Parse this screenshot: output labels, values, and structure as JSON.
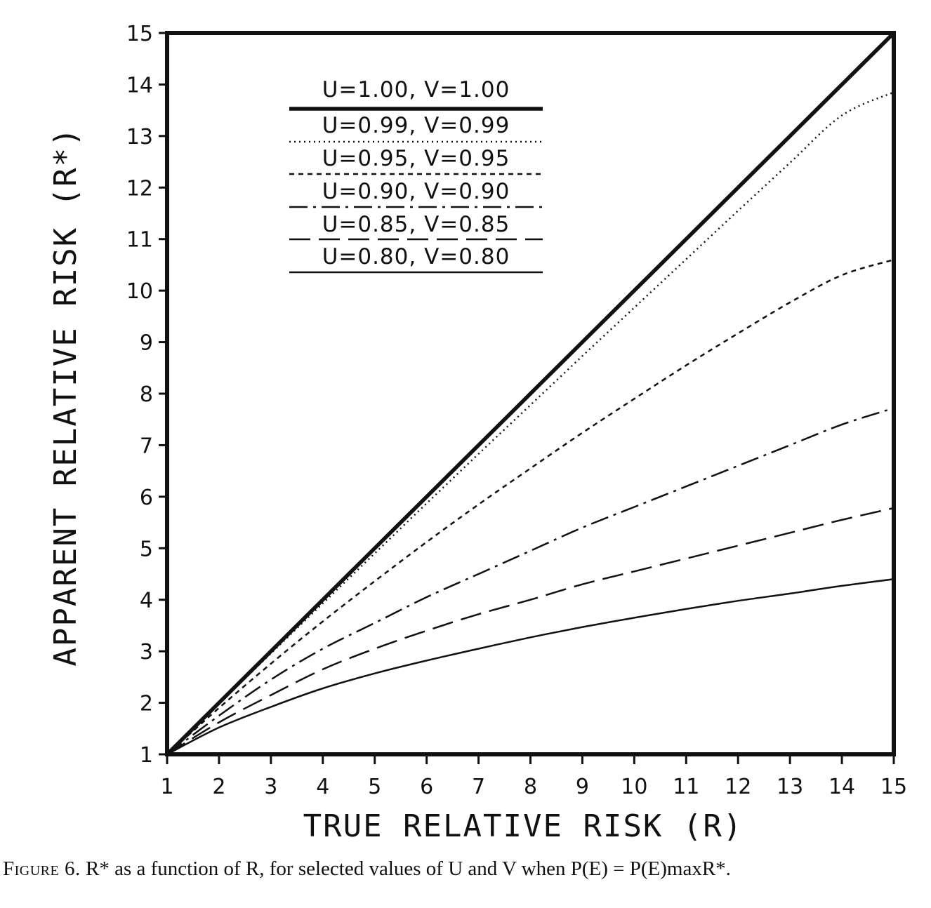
{
  "chart_data": {
    "type": "line",
    "xlabel": "TRUE RELATIVE RISK (R)",
    "ylabel": "APPARENT RELATIVE RISK (R*)",
    "xlim": [
      1,
      15
    ],
    "ylim": [
      1,
      15
    ],
    "xticks": [
      1,
      2,
      3,
      4,
      5,
      6,
      7,
      8,
      9,
      10,
      11,
      12,
      13,
      14,
      15
    ],
    "yticks": [
      1,
      2,
      3,
      4,
      5,
      6,
      7,
      8,
      9,
      10,
      11,
      12,
      13,
      14,
      15
    ],
    "legend_position": "top-left",
    "x": [
      1,
      2,
      3,
      4,
      5,
      6,
      7,
      8,
      9,
      10,
      11,
      12,
      13,
      14,
      15
    ],
    "series": [
      {
        "name": "U=1.00, V=1.00",
        "style": "solid-thick",
        "values": [
          1,
          2,
          3,
          4,
          5,
          6,
          7,
          8,
          9,
          10,
          11,
          12,
          13,
          14,
          15
        ]
      },
      {
        "name": "U=0.99, V=0.99",
        "style": "dotted",
        "values": [
          1,
          1.98,
          2.96,
          3.93,
          4.9,
          5.87,
          6.83,
          7.78,
          8.73,
          9.67,
          10.61,
          11.55,
          12.48,
          13.4,
          13.85
        ]
      },
      {
        "name": "U=0.95, V=0.95",
        "style": "short-dash",
        "values": [
          1,
          1.9,
          2.76,
          3.58,
          4.36,
          5.12,
          5.85,
          6.55,
          7.24,
          7.9,
          8.55,
          9.17,
          9.77,
          10.3,
          10.6
        ]
      },
      {
        "name": "U=0.90, V=0.90",
        "style": "dash-dot",
        "values": [
          1,
          1.75,
          2.45,
          3.05,
          3.55,
          4.05,
          4.5,
          4.95,
          5.4,
          5.8,
          6.2,
          6.6,
          7.0,
          7.4,
          7.72
        ]
      },
      {
        "name": "U=0.85, V=0.85",
        "style": "long-dash",
        "values": [
          1,
          1.62,
          2.15,
          2.65,
          3.05,
          3.4,
          3.72,
          4.0,
          4.3,
          4.55,
          4.8,
          5.05,
          5.3,
          5.55,
          5.78
        ]
      },
      {
        "name": "U=0.80, V=0.80",
        "style": "solid-thin",
        "values": [
          1,
          1.52,
          1.92,
          2.28,
          2.57,
          2.82,
          3.05,
          3.27,
          3.47,
          3.65,
          3.82,
          3.98,
          4.12,
          4.27,
          4.4
        ]
      }
    ]
  },
  "caption": {
    "figure_label": "Figure 6.",
    "text": "R* as a function of R, for selected values of U and V when P(E) = P(E)maxR*."
  }
}
